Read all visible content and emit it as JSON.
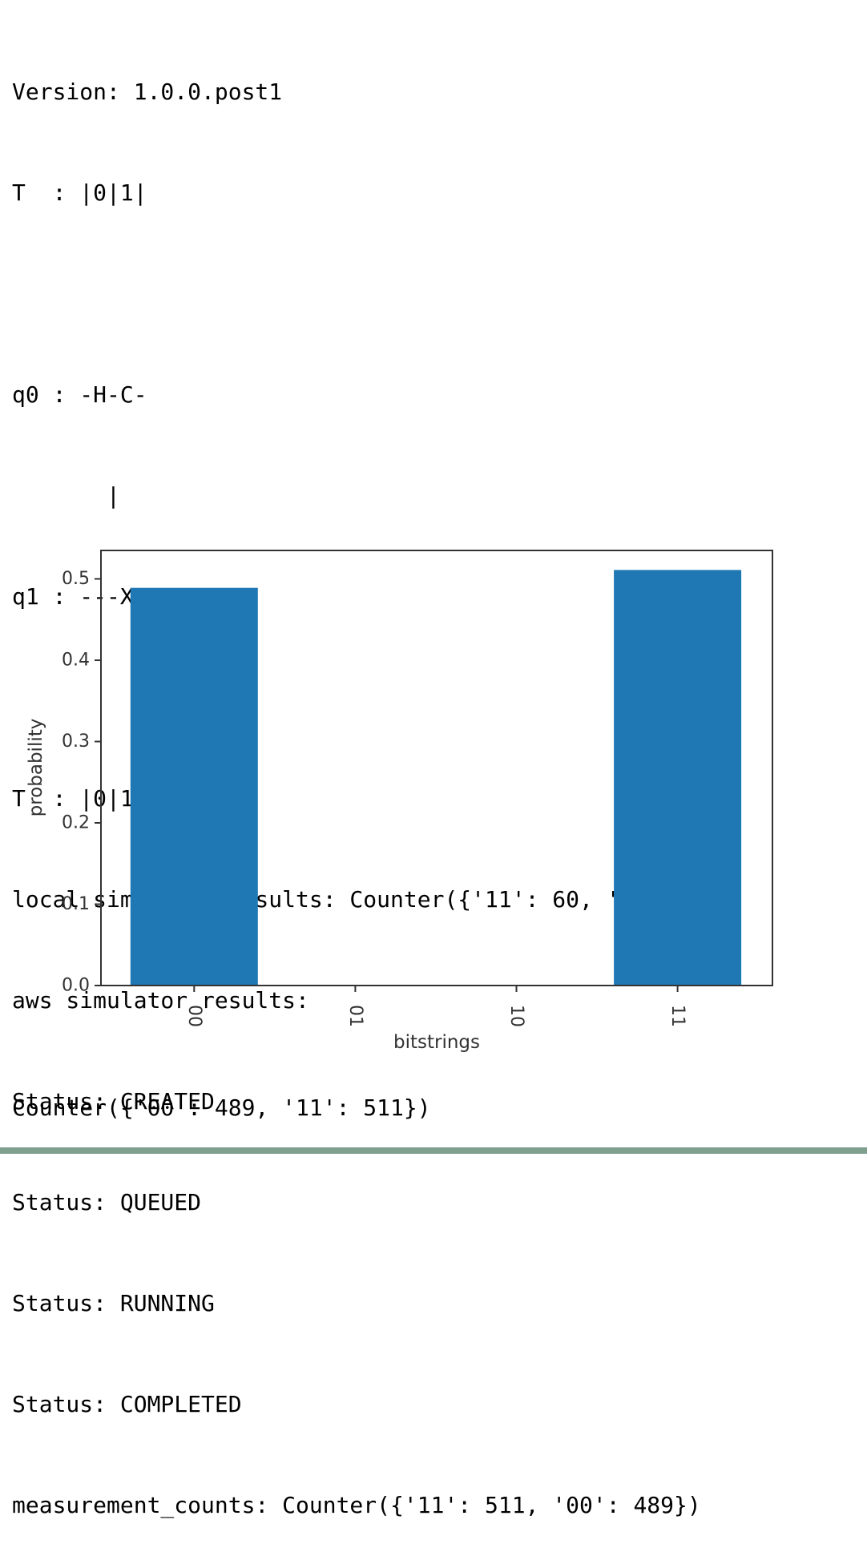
{
  "output_lines": [
    "Version: 1.0.0.post1",
    "T  : |0|1|",
    "",
    "q0 : -H-C-",
    "       |",
    "q1 : ---X-",
    "",
    "T  : |0|1|",
    "local simulator results: Counter({'11': 60, '00': 40})",
    "aws simulator results:",
    "Status: CREATED",
    "Status: QUEUED",
    "Status: RUNNING",
    "Status: COMPLETED",
    "measurement_counts: Counter({'11': 511, '00': 489})"
  ],
  "final_output": "Counter({'00': 489, '11': 511})",
  "chart_data": {
    "type": "bar",
    "categories": [
      "00",
      "01",
      "10",
      "11"
    ],
    "values": [
      0.489,
      0,
      0,
      0.511
    ],
    "xlabel": "bitstrings",
    "ylabel": "probability",
    "ylim": [
      0,
      0.535
    ],
    "yticks": [
      0.0,
      0.1,
      0.2,
      0.3,
      0.4,
      0.5
    ],
    "ytick_labels": [
      "0.0",
      "0.1",
      "0.2",
      "0.3",
      "0.4",
      "0.5"
    ],
    "bar_color": "#1f77b4",
    "grid": false,
    "xtick_rotation": "vertical"
  }
}
